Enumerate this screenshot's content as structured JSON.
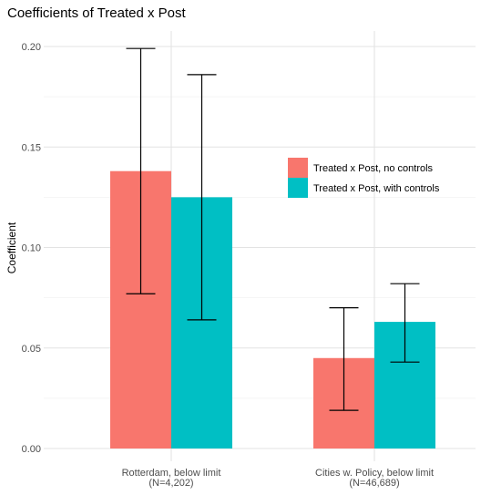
{
  "chart_data": {
    "type": "bar",
    "title": "Coefficients of Treated x Post",
    "xlabel": "",
    "ylabel": "Coefficient",
    "ylim": [
      0,
      0.21
    ],
    "yticks": [
      "0.00",
      "0.05",
      "0.10",
      "0.15",
      "0.20"
    ],
    "ytick_values": [
      0.0,
      0.05,
      0.1,
      0.15,
      0.2
    ],
    "categories": [
      {
        "line1": "Rotterdam, below limit",
        "line2": "(N=4,202)"
      },
      {
        "line1": "Cities w. Policy, below limit",
        "line2": "(N=46,689)"
      }
    ],
    "series": [
      {
        "name": "Treated x Post, no controls",
        "color": "#F8766D",
        "values": [
          0.138,
          0.045
        ],
        "error_low": [
          0.077,
          0.019
        ],
        "error_high": [
          0.199,
          0.07
        ]
      },
      {
        "name": "Treated x Post, with controls",
        "color": "#00BFC4",
        "values": [
          0.125,
          0.063
        ],
        "error_low": [
          0.064,
          0.043
        ],
        "error_high": [
          0.186,
          0.082
        ]
      }
    ],
    "grid": true,
    "legend_position": "inside-right"
  }
}
